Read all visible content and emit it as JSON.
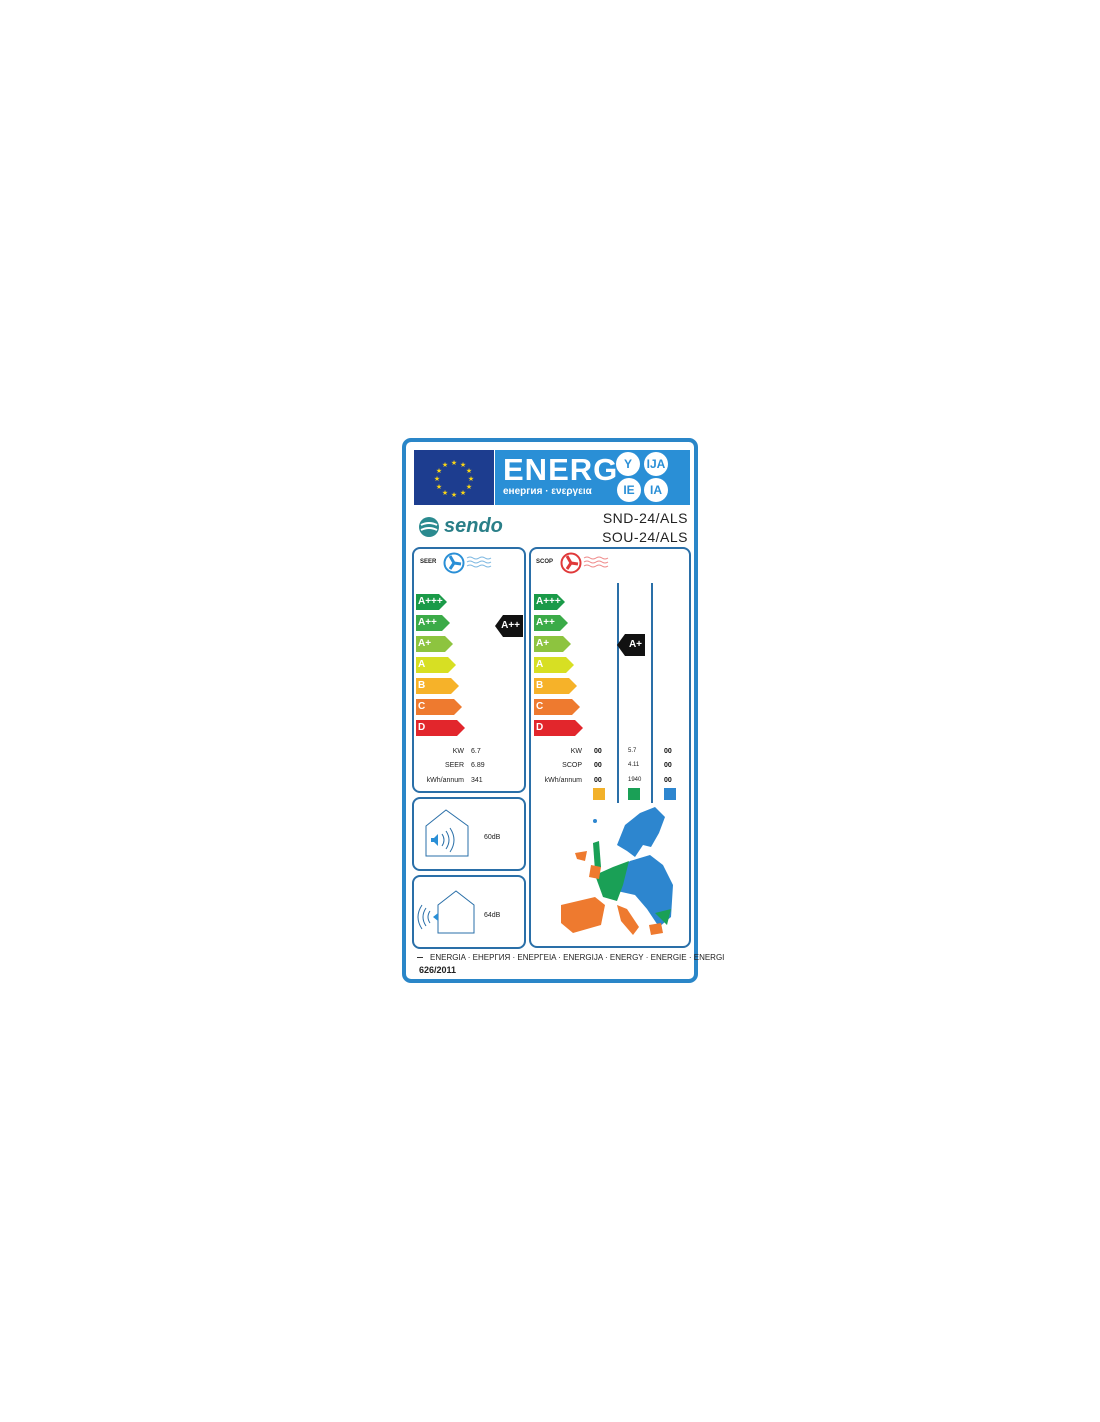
{
  "header": {
    "energy_word": "ENERG",
    "energy_subtitle": "енергия · ενεργεια",
    "suffixes": [
      "Y",
      "IJA",
      "IE",
      "IA"
    ]
  },
  "brand": {
    "name": "sendo"
  },
  "models": [
    "SND-24/ALS",
    "SOU-24/ALS"
  ],
  "classes": [
    {
      "label": "A+++",
      "color": "#1a9a48"
    },
    {
      "label": "A++",
      "color": "#3bab48"
    },
    {
      "label": "A+",
      "color": "#8dc43f"
    },
    {
      "label": "A",
      "color": "#d7df23"
    },
    {
      "label": "B",
      "color": "#f6b229"
    },
    {
      "label": "C",
      "color": "#ee7a2f"
    },
    {
      "label": "D",
      "color": "#e2262c"
    }
  ],
  "cooling": {
    "title": "SEER",
    "rating": "A++",
    "rows": [
      {
        "label": "KW",
        "value": "6.7"
      },
      {
        "label": "SEER",
        "value": "6.89"
      },
      {
        "label": "kWh/annum",
        "value": "341"
      }
    ]
  },
  "heating": {
    "title": "SCOP",
    "rating": "A+",
    "rows": [
      {
        "label": "KW",
        "values": [
          "00",
          "5.7",
          "00"
        ]
      },
      {
        "label": "SCOP",
        "values": [
          "00",
          "4.11",
          "00"
        ]
      },
      {
        "label": "kWh/annum",
        "values": [
          "00",
          "1940",
          "00"
        ]
      }
    ],
    "zone_colors": [
      "#f2b12a",
      "#1aa056",
      "#2d86cf"
    ]
  },
  "noise": {
    "indoor": "60dB",
    "outdoor": "64dB"
  },
  "footer": {
    "languages": "ENERGIA · ЕНЕРГИЯ · ΕΝΕΡΓΕΙΑ · ENERGIJA · ENERGY · ENERGIE · ENERGI",
    "regulation": "626/2011"
  }
}
